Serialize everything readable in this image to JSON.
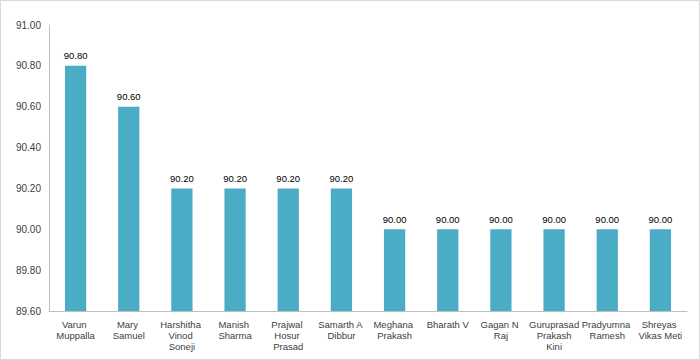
{
  "chart_data": {
    "type": "bar",
    "categories": [
      "Varun Muppalla",
      "Mary Samuel",
      "Harshitha Vinod Soneji",
      "Manish Sharma",
      "Prajwal Hosur Prasad",
      "Samarth A Dibbur",
      "Meghana Prakash",
      "Bharath V",
      "Gagan N Raj",
      "Guruprasad Prakash Kini",
      "Pradyumna Ramesh",
      "Shreyas Vikas Meti"
    ],
    "values": [
      90.8,
      90.6,
      90.2,
      90.2,
      90.2,
      90.2,
      90.0,
      90.0,
      90.0,
      90.0,
      90.0,
      90.0
    ],
    "value_labels": [
      "90.80",
      "90.60",
      "90.20",
      "90.20",
      "90.20",
      "90.20",
      "90.00",
      "90.00",
      "90.00",
      "90.00",
      "90.00",
      "90.00"
    ],
    "color": "#4bacc6",
    "ylim": [
      89.6,
      91.0
    ],
    "yticks": [
      {
        "value": 89.6,
        "label": "89.60"
      },
      {
        "value": 89.8,
        "label": "89.80"
      },
      {
        "value": 90.0,
        "label": "90.00"
      },
      {
        "value": 90.2,
        "label": "90.20"
      },
      {
        "value": 90.4,
        "label": "90.40"
      },
      {
        "value": 90.6,
        "label": "90.60"
      },
      {
        "value": 90.8,
        "label": "90.80"
      },
      {
        "value": 91.0,
        "label": "91.00"
      }
    ],
    "data_labels": true,
    "grid": false
  }
}
